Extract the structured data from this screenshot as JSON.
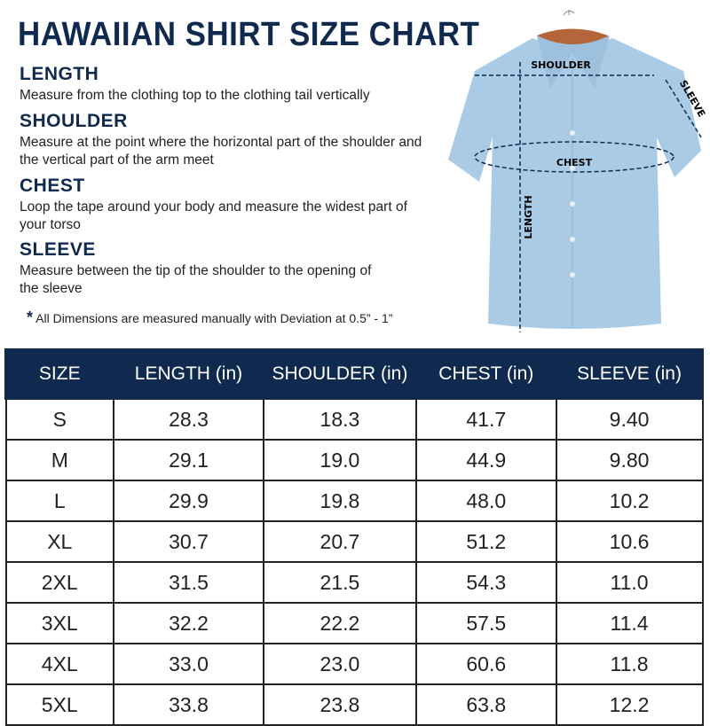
{
  "title": "HAWAIIAN SHIRT SIZE CHART",
  "sections": [
    {
      "heading": "LENGTH",
      "text": "Measure from the clothing top to the clothing tail vertically"
    },
    {
      "heading": "SHOULDER",
      "text": "Measure at the point where the horizontal part of the shoulder and the vertical part of the arm meet"
    },
    {
      "heading": "CHEST",
      "text": "Loop the tape around your body and measure the widest part of your torso"
    },
    {
      "heading": "SLEEVE",
      "text": "Measure between the tip of the shoulder to the opening of the sleeve"
    }
  ],
  "note": {
    "star": "*",
    "text": "All Dimensions are measured manually with Deviation at 0.5” - 1”"
  },
  "diagram": {
    "shoulder": "SHOULDER",
    "sleeve": "SLEEVE",
    "chest": "CHEST",
    "length": "LENGTH"
  },
  "colors": {
    "navy": "#0f2a4e",
    "shirt": "#a9cbe6"
  },
  "table": {
    "headers": [
      "SIZE",
      "LENGTH (in)",
      "SHOULDER (in)",
      "CHEST (in)",
      "SLEEVE (in)"
    ],
    "rows": [
      [
        "S",
        "28.3",
        "18.3",
        "41.7",
        "9.40"
      ],
      [
        "M",
        "29.1",
        "19.0",
        "44.9",
        "9.80"
      ],
      [
        "L",
        "29.9",
        "19.8",
        "48.0",
        "10.2"
      ],
      [
        "XL",
        "30.7",
        "20.7",
        "51.2",
        "10.6"
      ],
      [
        "2XL",
        "31.5",
        "21.5",
        "54.3",
        "11.0"
      ],
      [
        "3XL",
        "32.2",
        "22.2",
        "57.5",
        "11.4"
      ],
      [
        "4XL",
        "33.0",
        "23.0",
        "60.6",
        "11.8"
      ],
      [
        "5XL",
        "33.8",
        "23.8",
        "63.8",
        "12.2"
      ]
    ]
  }
}
